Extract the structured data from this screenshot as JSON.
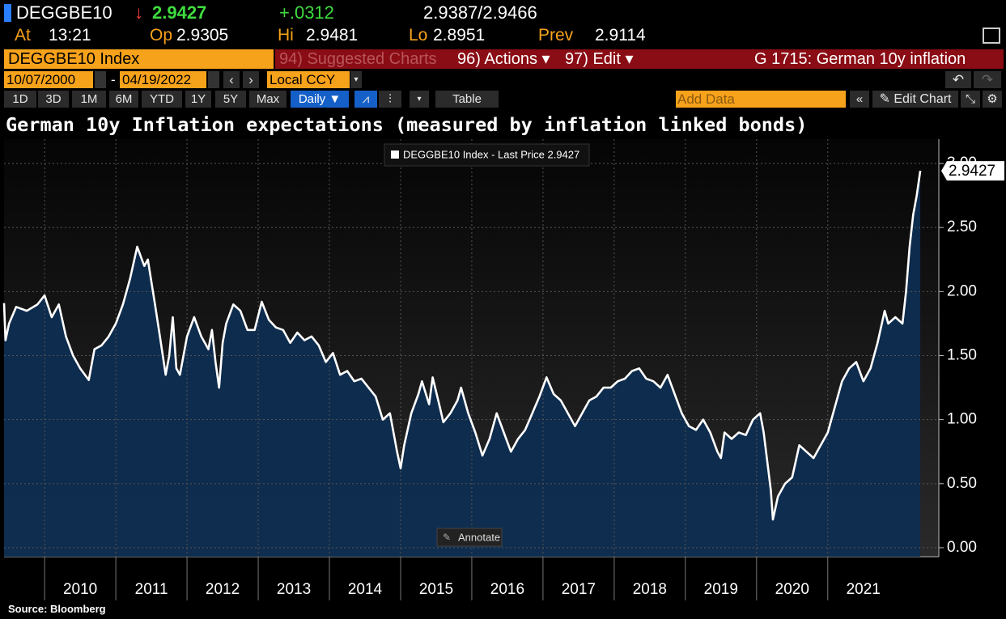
{
  "header": {
    "ticker": "DEGGBE10",
    "arrow": "↓",
    "last": "2.9427",
    "change": "+.0312",
    "bid_ask": "2.9387/2.9466",
    "fields": [
      {
        "label": "At",
        "value": "13:21"
      },
      {
        "label": "Op",
        "value": "2.9305"
      },
      {
        "label": "Hi",
        "value": "2.9481"
      },
      {
        "label": "Lo",
        "value": "2.8951"
      },
      {
        "label": "Prev",
        "value": "2.9114"
      }
    ]
  },
  "toolbar": {
    "security": "DEGGBE10 Index",
    "suggested": "94) Suggested Charts",
    "actions": "96) Actions ▾",
    "edit": "97) Edit ▾",
    "function": "G 1715: German 10y inflation"
  },
  "range": {
    "start": "10/07/2000",
    "separator": "-",
    "end": "04/19/2022",
    "currency": "Local CCY"
  },
  "periods": [
    "1D",
    "3D",
    "1M",
    "6M",
    "YTD",
    "1Y",
    "5Y",
    "Max"
  ],
  "frequency": "Daily ▼",
  "table": "Table",
  "add_data": "Add Data",
  "edit_chart": "Edit Chart",
  "chart_data": {
    "type": "line",
    "title": "German 10y Inflation expectations (measured by inflation linked bonds)",
    "annotation": "Annotate",
    "x": [
      2009.43,
      2009.45,
      2009.5,
      2009.6,
      2009.75,
      2009.9,
      2010.0,
      2010.1,
      2010.2,
      2010.3,
      2010.4,
      2010.5,
      2010.62,
      2010.7,
      2010.8,
      2010.9,
      2011.0,
      2011.1,
      2011.2,
      2011.3,
      2011.4,
      2011.45,
      2011.55,
      2011.62,
      2011.7,
      2011.75,
      2011.8,
      2011.85,
      2011.9,
      2012.0,
      2012.1,
      2012.2,
      2012.3,
      2012.35,
      2012.4,
      2012.45,
      2012.5,
      2012.55,
      2012.65,
      2012.75,
      2012.85,
      2012.95,
      2013.05,
      2013.15,
      2013.25,
      2013.35,
      2013.45,
      2013.55,
      2013.65,
      2013.75,
      2013.85,
      2013.95,
      2014.05,
      2014.15,
      2014.25,
      2014.35,
      2014.45,
      2014.55,
      2014.65,
      2014.75,
      2014.85,
      2014.95,
      2015.0,
      2015.05,
      2015.15,
      2015.25,
      2015.3,
      2015.4,
      2015.45,
      2015.55,
      2015.6,
      2015.7,
      2015.8,
      2015.85,
      2015.95,
      2016.05,
      2016.15,
      2016.25,
      2016.35,
      2016.45,
      2016.55,
      2016.65,
      2016.75,
      2016.85,
      2016.95,
      2017.05,
      2017.15,
      2017.25,
      2017.35,
      2017.45,
      2017.55,
      2017.65,
      2017.75,
      2017.85,
      2017.95,
      2018.05,
      2018.15,
      2018.25,
      2018.35,
      2018.45,
      2018.55,
      2018.65,
      2018.75,
      2018.85,
      2018.95,
      2019.05,
      2019.15,
      2019.25,
      2019.35,
      2019.45,
      2019.5,
      2019.55,
      2019.65,
      2019.75,
      2019.85,
      2019.95,
      2020.05,
      2020.1,
      2020.2,
      2020.23,
      2020.3,
      2020.4,
      2020.5,
      2020.6,
      2020.7,
      2020.8,
      2020.9,
      2021.0,
      2021.1,
      2021.2,
      2021.3,
      2021.4,
      2021.5,
      2021.6,
      2021.7,
      2021.8,
      2021.85,
      2021.95,
      2022.05,
      2022.1,
      2022.15,
      2022.2,
      2022.25,
      2022.3
    ],
    "series": [
      {
        "name": "DEGGBE10 Index - Last Price 2.9427",
        "color": "#ffffff",
        "area_color": "#0e2d50",
        "values": [
          1.91,
          1.62,
          1.75,
          1.88,
          1.85,
          1.9,
          1.97,
          1.8,
          1.9,
          1.65,
          1.5,
          1.4,
          1.31,
          1.55,
          1.58,
          1.65,
          1.75,
          1.9,
          2.1,
          2.35,
          2.2,
          2.25,
          1.9,
          1.65,
          1.35,
          1.5,
          1.8,
          1.4,
          1.35,
          1.65,
          1.8,
          1.65,
          1.55,
          1.7,
          1.45,
          1.25,
          1.6,
          1.75,
          1.9,
          1.85,
          1.7,
          1.7,
          1.92,
          1.78,
          1.72,
          1.7,
          1.6,
          1.68,
          1.62,
          1.65,
          1.58,
          1.45,
          1.52,
          1.35,
          1.38,
          1.3,
          1.32,
          1.25,
          1.18,
          1.0,
          1.05,
          0.75,
          0.62,
          0.8,
          1.05,
          1.2,
          1.3,
          1.12,
          1.33,
          1.1,
          0.98,
          1.05,
          1.15,
          1.25,
          1.05,
          0.9,
          0.72,
          0.85,
          1.05,
          0.9,
          0.75,
          0.85,
          0.92,
          1.05,
          1.18,
          1.33,
          1.2,
          1.15,
          1.05,
          0.95,
          1.05,
          1.15,
          1.18,
          1.25,
          1.25,
          1.3,
          1.32,
          1.38,
          1.4,
          1.32,
          1.3,
          1.25,
          1.35,
          1.2,
          1.05,
          0.95,
          0.92,
          1.0,
          0.9,
          0.75,
          0.7,
          0.9,
          0.85,
          0.9,
          0.88,
          1.0,
          1.05,
          0.9,
          0.45,
          0.22,
          0.4,
          0.5,
          0.55,
          0.8,
          0.75,
          0.7,
          0.8,
          0.9,
          1.1,
          1.3,
          1.4,
          1.45,
          1.3,
          1.4,
          1.6,
          1.85,
          1.75,
          1.8,
          1.75,
          2.0,
          2.35,
          2.6,
          2.75,
          2.9427
        ]
      }
    ],
    "xlim": [
      2009.43,
      2022.56
    ],
    "xticks": [
      {
        "value": 2010,
        "label": "2010"
      },
      {
        "value": 2011,
        "label": "2011"
      },
      {
        "value": 2012,
        "label": "2012"
      },
      {
        "value": 2013,
        "label": "2013"
      },
      {
        "value": 2014,
        "label": "2014"
      },
      {
        "value": 2015,
        "label": "2015"
      },
      {
        "value": 2016,
        "label": "2016"
      },
      {
        "value": 2017,
        "label": "2017"
      },
      {
        "value": 2018,
        "label": "2018"
      },
      {
        "value": 2019,
        "label": "2019"
      },
      {
        "value": 2020,
        "label": "2020"
      },
      {
        "value": 2021,
        "label": "2021"
      }
    ],
    "ylim": [
      -0.07,
      3.19
    ],
    "yticks": [
      {
        "value": 0,
        "label": "0.00"
      },
      {
        "value": 0.5,
        "label": "0.50"
      },
      {
        "value": 1,
        "label": "1.00"
      },
      {
        "value": 1.5,
        "label": "1.50"
      },
      {
        "value": 2,
        "label": "2.00"
      },
      {
        "value": 2.5,
        "label": "2.50"
      },
      {
        "value": 3,
        "label": "3.00"
      }
    ],
    "grid": true,
    "legend": "top"
  },
  "source": "Source: Bloomberg"
}
